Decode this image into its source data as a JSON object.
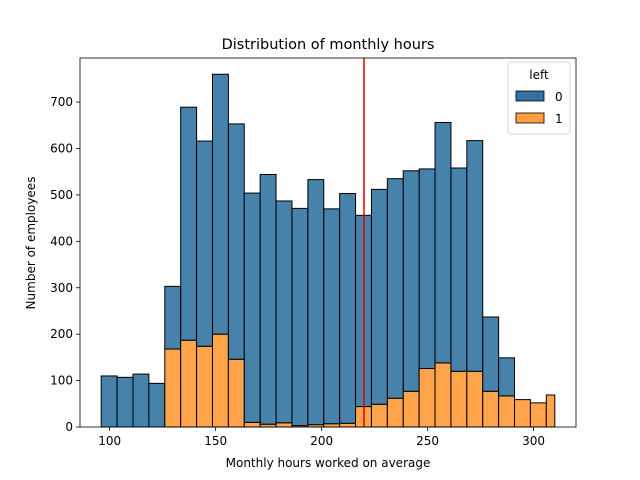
{
  "chart_data": {
    "type": "bar",
    "stacked": true,
    "title": "Distribution of monthly hours",
    "xlabel": "Monthly hours worked on average",
    "ylabel": "Number of employees",
    "xlim": [
      86,
      320
    ],
    "ylim": [
      0,
      795
    ],
    "xticks": [
      100,
      150,
      200,
      250,
      300
    ],
    "yticks": [
      0,
      100,
      200,
      300,
      400,
      500,
      600,
      700
    ],
    "bin_edges": [
      96,
      103.5,
      111,
      118.5,
      126,
      133.5,
      141,
      148.5,
      156,
      163.5,
      171,
      178.5,
      186,
      193.5,
      201,
      208.5,
      216,
      223.5,
      231,
      238.5,
      246,
      253.5,
      261,
      268.5,
      276,
      283.5,
      291,
      298.5,
      306,
      310
    ],
    "legend": {
      "title": "left",
      "placement": "top-right"
    },
    "series": [
      {
        "name": "0",
        "color": "#3274a1",
        "values": [
          110,
          107,
          114,
          94,
          135,
          502,
          442,
          560,
          507,
          494,
          538,
          478,
          468,
          528,
          463,
          495,
          412,
          463,
          473,
          475,
          430,
          518,
          438,
          497,
          160,
          82,
          0,
          0,
          0
        ]
      },
      {
        "name": "1",
        "color": "#ff9f40",
        "values": [
          0,
          0,
          0,
          0,
          168,
          187,
          174,
          200,
          146,
          10,
          6,
          9,
          3,
          5,
          7,
          8,
          44,
          49,
          62,
          77,
          126,
          138,
          120,
          120,
          77,
          67,
          59,
          52,
          69
        ]
      }
    ],
    "reference_line": {
      "x": 220,
      "color": "#e00000"
    }
  }
}
